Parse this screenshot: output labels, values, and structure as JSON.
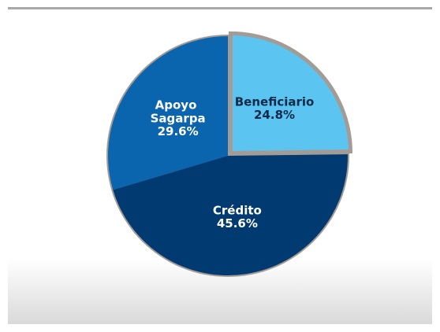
{
  "chart_data": {
    "type": "pie",
    "categories": [
      "Beneficiario",
      "Crédito",
      "Apoyo Sagarpa"
    ],
    "values": [
      24.8,
      45.6,
      29.6
    ],
    "value_labels": [
      "24.8%",
      "45.6%",
      "29.6%"
    ],
    "colors": [
      "#5bc4f1",
      "#003a70",
      "#0b64ae"
    ],
    "label_colors": [
      "#0b2a4a",
      "#ffffff",
      "#ffffff"
    ],
    "border_color": "#a39c96"
  }
}
